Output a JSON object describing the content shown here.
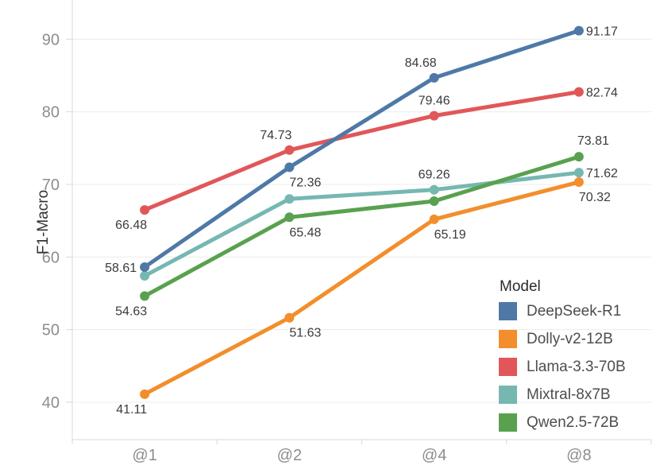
{
  "chart_data": {
    "type": "line",
    "title": "",
    "xlabel": "",
    "ylabel": "F1-Macro",
    "x_categories": [
      "@1",
      "@2",
      "@4",
      "@8"
    ],
    "yticks": [
      40,
      50,
      60,
      70,
      80,
      90
    ],
    "ylim": [
      34.85,
      95.4
    ],
    "grid": "horizontal",
    "legend": {
      "title": "Model",
      "position": "inside-right"
    },
    "series": [
      {
        "name": "DeepSeek-R1",
        "color": "#4e79a7",
        "values": [
          58.61,
          72.36,
          84.68,
          91.17
        ],
        "labels": [
          "58.61",
          "72.36",
          "84.68",
          "91.17"
        ],
        "label_pos": [
          "left",
          "below-right",
          "above-left",
          "right"
        ]
      },
      {
        "name": "Dolly-v2-12B",
        "color": "#f28e2b",
        "values": [
          41.11,
          51.63,
          65.19,
          70.32
        ],
        "labels": [
          "41.11",
          "51.63",
          "65.19",
          "70.32"
        ],
        "label_pos": [
          "below-left",
          "below-right",
          "below-right",
          "below-right"
        ]
      },
      {
        "name": "Llama-3.3-70B",
        "color": "#e15759",
        "values": [
          66.48,
          74.73,
          79.46,
          82.74
        ],
        "labels": [
          "66.48",
          "74.73",
          "79.46",
          "82.74"
        ],
        "label_pos": [
          "below-left",
          "above-left",
          "above-center",
          "right"
        ]
      },
      {
        "name": "Mixtral-8x7B",
        "color": "#76b7b2",
        "values": [
          57.4,
          68.0,
          69.26,
          71.62
        ],
        "labels": [
          null,
          null,
          "69.26",
          "71.62"
        ],
        "label_pos": [
          null,
          null,
          "above-center",
          "right"
        ]
      },
      {
        "name": "Qwen2.5-72B",
        "color": "#59a14f",
        "values": [
          54.63,
          65.48,
          67.7,
          73.81
        ],
        "labels": [
          "54.63",
          "65.48",
          null,
          "73.81"
        ],
        "label_pos": [
          "below-left",
          "below-right",
          null,
          "above-right"
        ]
      }
    ],
    "draw_order": [
      "Dolly-v2-12B",
      "Llama-3.3-70B",
      "Mixtral-8x7B",
      "Qwen2.5-72B",
      "DeepSeek-R1"
    ]
  },
  "colors": {
    "background": "#ffffff",
    "gridline": "#ececec",
    "axis_line": "#d8d8d8",
    "tick_label": "#8d8d8d",
    "data_label": "#3b3b3b",
    "legend_title": "#2b2b2b",
    "legend_label": "#4d4d4d"
  }
}
